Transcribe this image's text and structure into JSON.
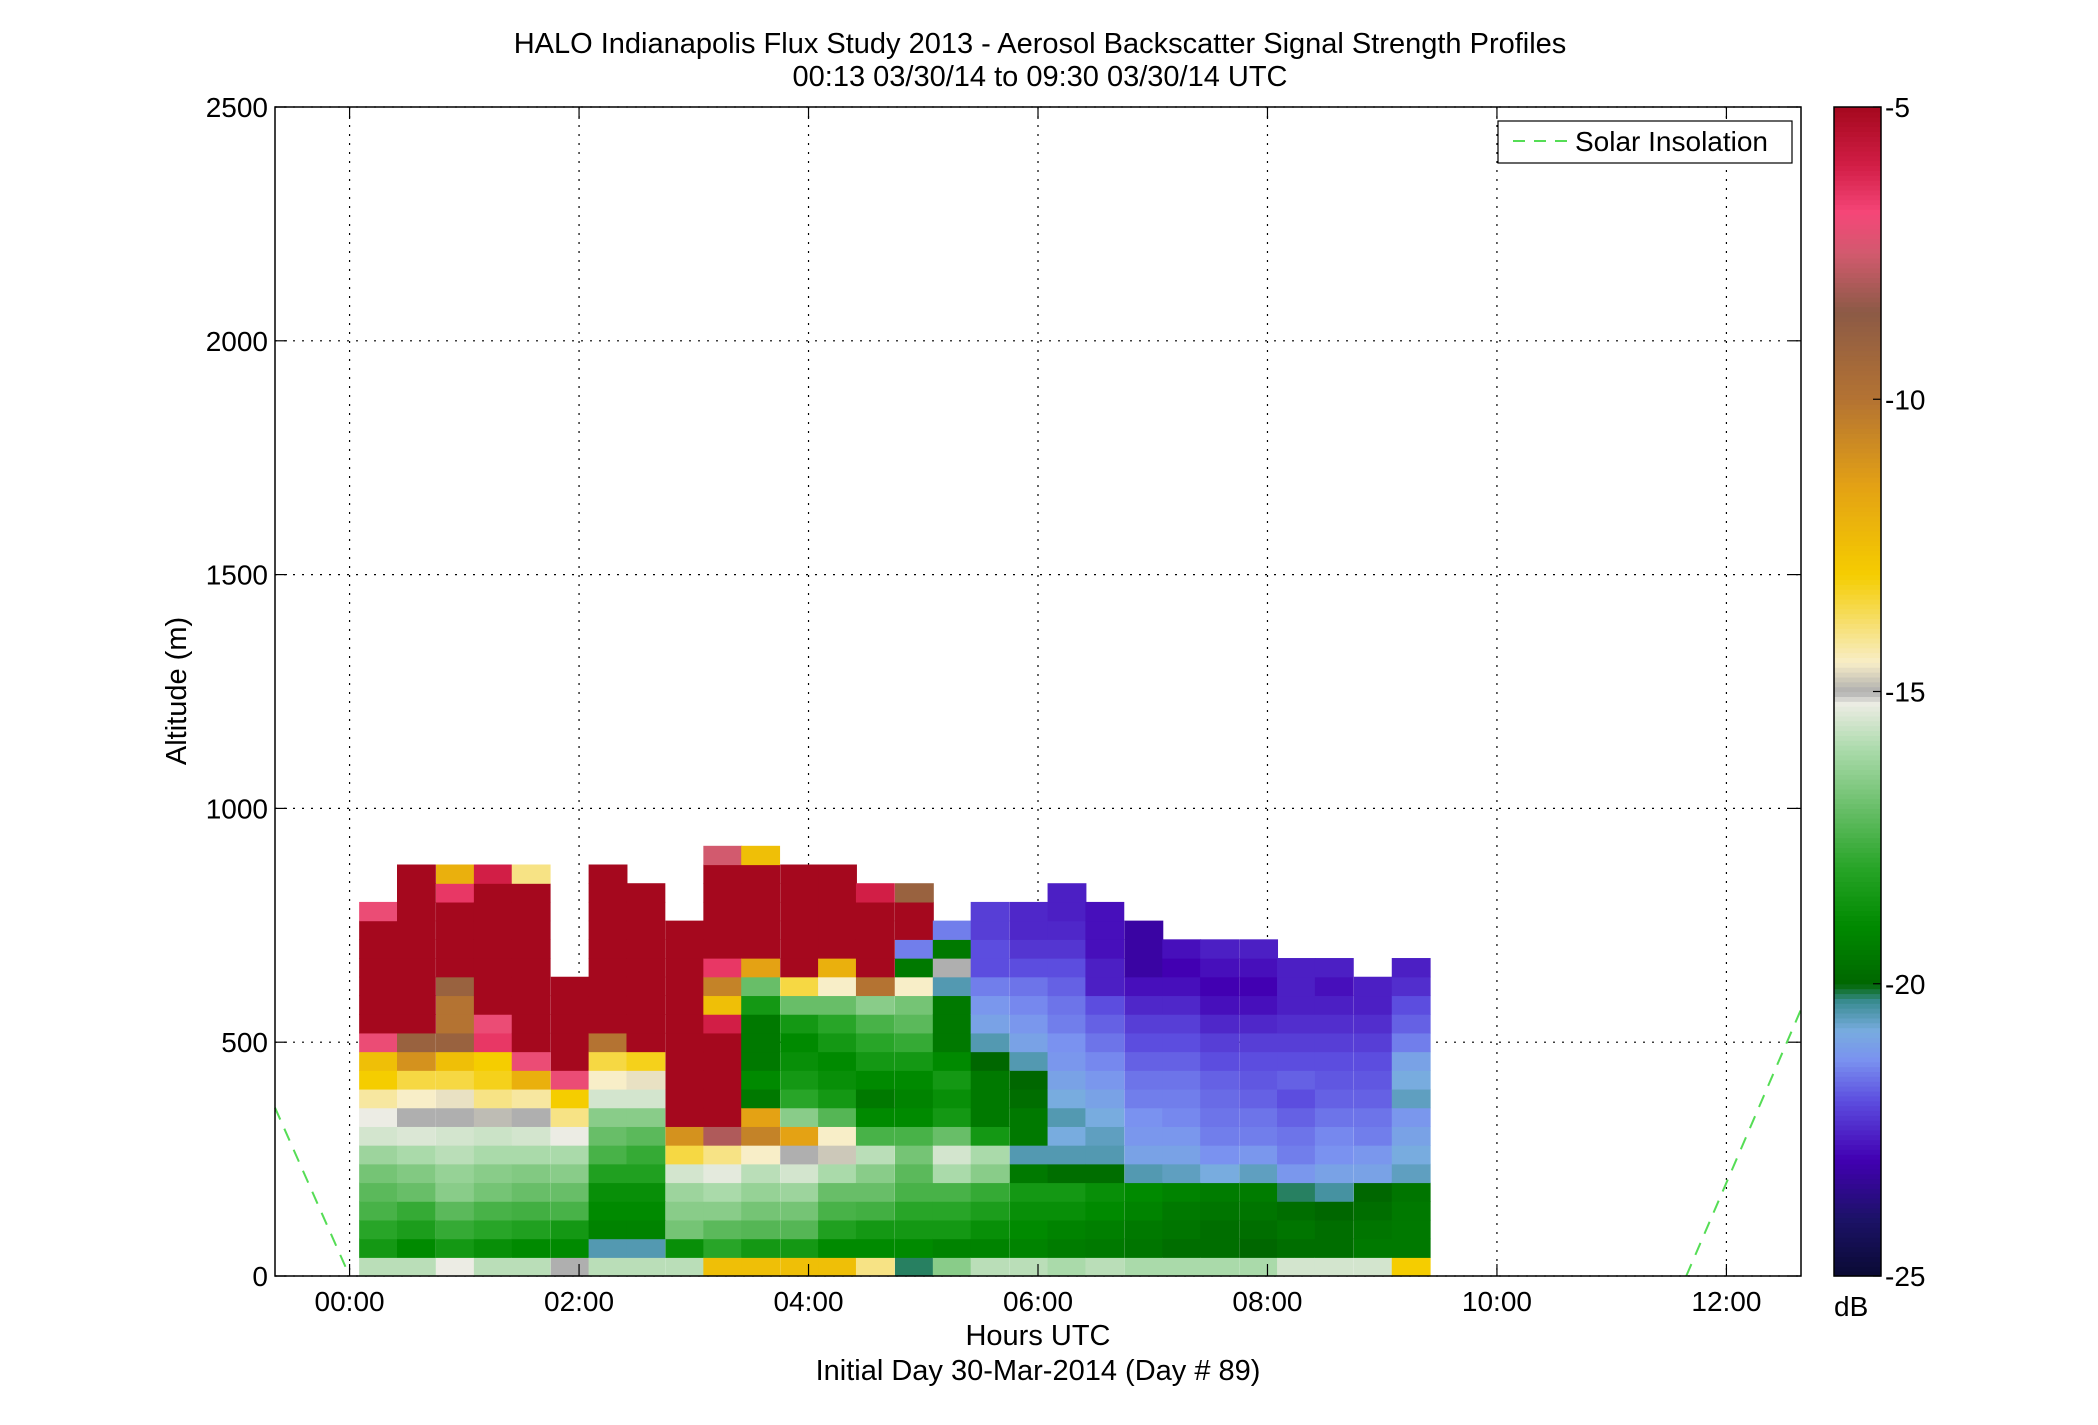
{
  "chart_data": {
    "type": "heatmap",
    "title": "HALO Indianapolis Flux Study 2013 - Aerosol Backscatter Signal Strength Profiles",
    "subtitle": "00:13 03/30/14 to 09:30 03/30/14  UTC",
    "xlabel": "Hours UTC",
    "xlabel2": "Initial Day 30-Mar-2014 (Day # 89)",
    "ylabel": "Altitude (m)",
    "xlim": [
      -0.65,
      12.65
    ],
    "ylim": [
      0,
      2500
    ],
    "x_ticks": [
      0,
      2,
      4,
      6,
      8,
      10,
      12
    ],
    "x_tick_labels": [
      "00:00",
      "02:00",
      "04:00",
      "06:00",
      "08:00",
      "10:00",
      "12:00"
    ],
    "y_ticks": [
      0,
      500,
      1000,
      1500,
      2000,
      2500
    ],
    "y_tick_labels": [
      "0",
      "500",
      "1000",
      "1500",
      "2000",
      "2500"
    ],
    "grid": true,
    "legend": {
      "position": "top-right",
      "entries": [
        {
          "name": "Solar Insolation",
          "style": "dashed",
          "color": "#55dd55"
        }
      ]
    },
    "colorbar": {
      "unit": "dB",
      "range": [
        -25,
        -5
      ],
      "ticks": [
        -5,
        -10,
        -15,
        -20,
        -25
      ],
      "tick_labels": [
        "-5",
        "-10",
        "-15",
        "-20",
        "-25"
      ]
    },
    "solar_insolation": [
      {
        "x": -0.65,
        "y": 360
      },
      {
        "x": 0.0,
        "y": 0
      },
      {
        "x": 11.65,
        "y": 0
      },
      {
        "x": 12.65,
        "y": 570
      }
    ],
    "time_bins_hours": [
      0.25,
      0.58,
      0.92,
      1.25,
      1.58,
      1.92,
      2.25,
      2.58,
      2.92,
      3.25,
      3.58,
      3.92,
      4.25,
      4.58,
      4.92,
      5.25,
      5.58,
      5.92,
      6.25,
      6.58,
      6.92,
      7.25,
      7.58,
      7.92,
      8.25,
      8.58,
      8.92,
      9.25
    ],
    "bin_height_m": 40,
    "profiles": [
      {
        "t": 0.25,
        "top": 880,
        "dB": [
          -15.8,
          -18.5,
          -18.0,
          -17.5,
          -17.2,
          -16.8,
          -16.2,
          -15.5,
          -15.2,
          -14.2,
          -13.0,
          -12.5,
          -7.0,
          -5.0,
          -5.0,
          -5.0,
          -5.0,
          -5.0,
          -5.0,
          -7.0
        ]
      },
      {
        "t": 0.58,
        "top": 960,
        "dB": [
          -15.8,
          -19.0,
          -18.3,
          -17.8,
          -17.0,
          -16.6,
          -16.0,
          -15.4,
          -15.0,
          -14.5,
          -13.5,
          -11.0,
          -9.0,
          -5.0,
          -5.0,
          -5.0,
          -5.0,
          -5.0,
          -5.0,
          -5.0,
          -5.0,
          -5.0
        ]
      },
      {
        "t": 0.92,
        "top": 960,
        "dB": [
          -15.2,
          -18.5,
          -17.8,
          -17.2,
          -16.5,
          -16.3,
          -15.8,
          -15.5,
          -15.0,
          -14.6,
          -13.5,
          -12.5,
          -9.0,
          -10.0,
          -10.0,
          -9.0,
          -5.0,
          -5.0,
          -5.0,
          -5.0,
          -6.5,
          -12.0
        ]
      },
      {
        "t": 1.25,
        "top": 960,
        "dB": [
          -15.8,
          -18.8,
          -18.0,
          -17.5,
          -16.8,
          -16.5,
          -16.0,
          -15.6,
          -14.9,
          -14.0,
          -13.2,
          -13.0,
          -6.5,
          -7.0,
          -5.0,
          -5.0,
          -5.0,
          -5.0,
          -5.0,
          -5.0,
          -5.0,
          -6.0
        ]
      },
      {
        "t": 1.58,
        "top": 960,
        "dB": [
          -15.8,
          -19.0,
          -18.2,
          -17.6,
          -17.0,
          -16.6,
          -16.0,
          -15.5,
          -15.0,
          -14.2,
          -12.0,
          -7.0,
          -5.0,
          -5.0,
          -5.0,
          -5.0,
          -5.0,
          -5.0,
          -5.0,
          -5.0,
          -5.0,
          -14.0
        ]
      },
      {
        "t": 1.92,
        "top": 720,
        "dB": [
          -15.0,
          -19.0,
          -18.5,
          -17.5,
          -17.0,
          -16.5,
          -16.0,
          -15.2,
          -14.0,
          -13.0,
          -7.0,
          -5.0,
          -5.0,
          -5.0,
          -5.0,
          -5.0
        ]
      },
      {
        "t": 2.25,
        "top": 960,
        "dB": [
          -15.8,
          -20.5,
          -19.2,
          -19.0,
          -18.8,
          -18.2,
          -17.5,
          -17.0,
          -16.5,
          -15.5,
          -14.5,
          -13.5,
          -10.0,
          -5.0,
          -5.0,
          -5.0,
          -5.0,
          -5.0,
          -5.0,
          -5.0,
          -5.0,
          -5.0
        ]
      },
      {
        "t": 2.58,
        "top": 920,
        "dB": [
          -15.8,
          -20.5,
          -19.2,
          -19.0,
          -18.8,
          -18.2,
          -17.8,
          -17.2,
          -16.5,
          -15.5,
          -14.6,
          -13.2,
          -5.0,
          -5.0,
          -5.0,
          -5.0,
          -5.0,
          -5.0,
          -5.0,
          -5.0,
          -5.0
        ]
      },
      {
        "t": 2.92,
        "top": 840,
        "dB": [
          -15.8,
          -18.8,
          -16.8,
          -16.5,
          -16.2,
          -15.5,
          -13.5,
          -11.0,
          -5.0,
          -5.0,
          -5.0,
          -5.0,
          -5.0,
          -5.0,
          -5.0,
          -5.0,
          -5.0,
          -5.0,
          -5.0
        ]
      },
      {
        "t": 3.25,
        "top": 1000,
        "dB": [
          -12.5,
          -18.0,
          -17.2,
          -16.5,
          -16.0,
          -15.3,
          -14.0,
          -8.0,
          -5.0,
          -5.0,
          -5.0,
          -5.0,
          -5.0,
          -6.0,
          -12.5,
          -10.5,
          -6.5,
          -5.0,
          -5.0,
          -5.0,
          -5.0,
          -5.0,
          -7.5
        ]
      },
      {
        "t": 3.58,
        "top": 1000,
        "dB": [
          -12.5,
          -18.5,
          -17.3,
          -16.8,
          -16.3,
          -15.8,
          -14.5,
          -10.5,
          -11.5,
          -19.5,
          -19.0,
          -19.5,
          -19.5,
          -19.5,
          -18.5,
          -17.0,
          -11.5,
          -5.0,
          -5.0,
          -5.0,
          -5.0,
          -5.0,
          -12.5
        ]
      },
      {
        "t": 3.92,
        "top": 960,
        "dB": [
          -12.5,
          -18.5,
          -17.3,
          -16.8,
          -16.2,
          -15.5,
          -15.0,
          -11.5,
          -16.5,
          -18.0,
          -18.5,
          -18.8,
          -19.0,
          -18.5,
          -17.0,
          -13.5,
          -5.0,
          -5.0,
          -5.0,
          -5.0,
          -5.0,
          -5.0
        ]
      },
      {
        "t": 4.25,
        "top": 960,
        "dB": [
          -12.5,
          -19.0,
          -18.2,
          -17.5,
          -17.0,
          -16.0,
          -14.8,
          -14.5,
          -17.3,
          -18.5,
          -18.8,
          -19.0,
          -18.5,
          -18.0,
          -17.0,
          -14.5,
          -12.0,
          -5.0,
          -5.0,
          -5.0,
          -5.0,
          -5.0
        ]
      },
      {
        "t": 4.58,
        "top": 920,
        "dB": [
          -14.0,
          -19.0,
          -18.5,
          -17.6,
          -17.0,
          -16.5,
          -15.8,
          -17.5,
          -19.0,
          -19.5,
          -19.0,
          -18.5,
          -18.0,
          -17.5,
          -16.5,
          -10.0,
          -5.0,
          -5.0,
          -5.0,
          -5.0,
          -6.0
        ]
      },
      {
        "t": 4.92,
        "top": 920,
        "dB": [
          -20.2,
          -19.0,
          -18.5,
          -18.0,
          -17.5,
          -17.2,
          -16.8,
          -17.5,
          -19.0,
          -19.2,
          -19.0,
          -18.5,
          -17.8,
          -17.2,
          -16.8,
          -14.5,
          -19.5,
          -21.5,
          -5.0,
          -5.0,
          -9.0
        ]
      },
      {
        "t": 5.25,
        "top": 840,
        "dB": [
          -16.5,
          -19.2,
          -18.5,
          -18.0,
          -17.5,
          -16.0,
          -15.5,
          -17.0,
          -18.5,
          -18.8,
          -18.5,
          -19.0,
          -19.5,
          -19.5,
          -19.5,
          -20.5,
          -15.0,
          -19.5,
          -21.5
        ]
      },
      {
        "t": 5.58,
        "top": 880,
        "dB": [
          -15.8,
          -19.2,
          -18.8,
          -18.3,
          -17.8,
          -16.5,
          -16.0,
          -18.5,
          -19.5,
          -19.5,
          -19.5,
          -20.0,
          -20.5,
          -21.0,
          -21.2,
          -21.5,
          -22.0,
          -22.0,
          -22.2,
          -22.2
        ]
      },
      {
        "t": 5.92,
        "top": 880,
        "dB": [
          -15.8,
          -19.2,
          -19.0,
          -18.8,
          -18.5,
          -19.5,
          -20.5,
          -19.5,
          -19.5,
          -19.8,
          -20.0,
          -20.5,
          -21.0,
          -21.2,
          -21.4,
          -21.6,
          -22.0,
          -22.3,
          -22.5,
          -22.5
        ]
      },
      {
        "t": 6.25,
        "top": 920,
        "dB": [
          -16.0,
          -19.4,
          -19.2,
          -18.8,
          -18.5,
          -19.8,
          -20.5,
          -20.8,
          -20.5,
          -20.8,
          -21.0,
          -21.2,
          -21.3,
          -21.5,
          -21.6,
          -21.8,
          -22.0,
          -22.3,
          -22.5,
          -22.6,
          -22.6
        ]
      },
      {
        "t": 6.58,
        "top": 880,
        "dB": [
          -15.8,
          -19.5,
          -19.3,
          -19.0,
          -18.8,
          -19.8,
          -20.5,
          -20.6,
          -20.8,
          -21.0,
          -21.2,
          -21.4,
          -21.6,
          -21.8,
          -22.0,
          -22.6,
          -22.6,
          -22.8,
          -22.8,
          -22.8
        ]
      },
      {
        "t": 6.92,
        "top": 840,
        "dB": [
          -16.0,
          -19.6,
          -19.5,
          -19.2,
          -19.0,
          -20.5,
          -21.0,
          -21.2,
          -21.3,
          -21.5,
          -21.6,
          -21.8,
          -22.0,
          -22.2,
          -22.5,
          -22.8,
          -23.2,
          -23.2,
          -23.2
        ]
      },
      {
        "t": 7.25,
        "top": 800,
        "dB": [
          -16.0,
          -19.8,
          -19.6,
          -19.5,
          -19.2,
          -20.6,
          -21.0,
          -21.2,
          -21.4,
          -21.5,
          -21.6,
          -21.8,
          -22.0,
          -22.2,
          -22.5,
          -22.8,
          -23.0,
          -22.8
        ]
      },
      {
        "t": 7.58,
        "top": 800,
        "dB": [
          -16.0,
          -19.8,
          -19.8,
          -19.6,
          -19.4,
          -20.8,
          -21.3,
          -21.5,
          -21.6,
          -21.7,
          -21.8,
          -22.0,
          -22.2,
          -22.5,
          -22.8,
          -23.0,
          -22.8,
          -22.6
        ]
      },
      {
        "t": 7.92,
        "top": 800,
        "dB": [
          -16.0,
          -20.0,
          -19.8,
          -19.6,
          -19.4,
          -20.6,
          -21.2,
          -21.5,
          -21.6,
          -21.8,
          -21.9,
          -22.0,
          -22.2,
          -22.5,
          -22.8,
          -23.0,
          -22.8,
          -22.6
        ]
      },
      {
        "t": 8.25,
        "top": 760,
        "dB": [
          -15.5,
          -19.8,
          -19.6,
          -19.8,
          -20.2,
          -21.2,
          -21.5,
          -21.6,
          -21.8,
          -22.0,
          -21.8,
          -22.0,
          -22.2,
          -22.4,
          -22.6,
          -22.6,
          -22.6
        ]
      },
      {
        "t": 8.58,
        "top": 760,
        "dB": [
          -15.5,
          -19.8,
          -19.8,
          -20.0,
          -20.4,
          -21.0,
          -21.3,
          -21.4,
          -21.6,
          -21.8,
          -21.9,
          -22.0,
          -22.2,
          -22.4,
          -22.6,
          -22.8,
          -22.6
        ]
      },
      {
        "t": 8.92,
        "top": 720,
        "dB": [
          -15.5,
          -19.5,
          -19.6,
          -19.8,
          -20.0,
          -21.0,
          -21.2,
          -21.5,
          -21.6,
          -21.8,
          -21.9,
          -22.0,
          -22.2,
          -22.4,
          -22.6,
          -22.6
        ]
      },
      {
        "t": 9.25,
        "top": 760,
        "dB": [
          -13.0,
          -19.5,
          -19.5,
          -19.5,
          -19.6,
          -20.6,
          -20.8,
          -21.0,
          -21.2,
          -20.6,
          -20.8,
          -21.0,
          -21.5,
          -21.8,
          -22.0,
          -22.4,
          -22.6
        ]
      }
    ]
  }
}
